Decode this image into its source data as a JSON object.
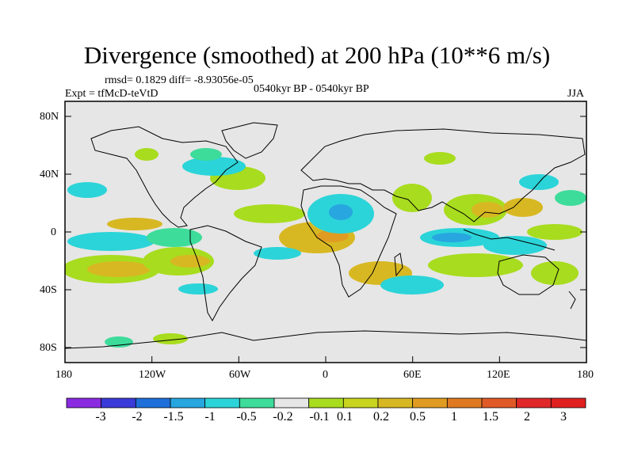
{
  "title": "Divergence (smoothed) at 200 hPa (10**6 m/s)",
  "stats": "rmsd= 0.1829 diff= -8.93056e-05",
  "experiment": "Expt = tfMcD-teVtD",
  "period": "0540kyr BP - 0540kyr BP",
  "season": "JJA",
  "map": {
    "lon_ticks": [
      "180",
      "120W",
      "60W",
      "0",
      "60E",
      "120E",
      "180"
    ],
    "lat_ticks": [
      "80N",
      "40N",
      "0",
      "40S",
      "80S"
    ],
    "background_color": "#e6e6e6"
  },
  "colorbar": {
    "colors": [
      "#8a2be2",
      "#3b3bd9",
      "#1e6fd9",
      "#27a6e0",
      "#2bd4d8",
      "#3ddc9a",
      "#e6e6e6",
      "#a8dc1e",
      "#c8d41e",
      "#d8b822",
      "#e09c22",
      "#e07a22",
      "#e05a28",
      "#e02828"
    ],
    "labels": [
      "-3",
      "-2",
      "-1.5",
      "-1",
      "-0.5",
      "-0.2",
      "-0.1",
      "0.1",
      "0.2",
      "0.5",
      "1",
      "1.5",
      "2",
      "3"
    ]
  }
}
